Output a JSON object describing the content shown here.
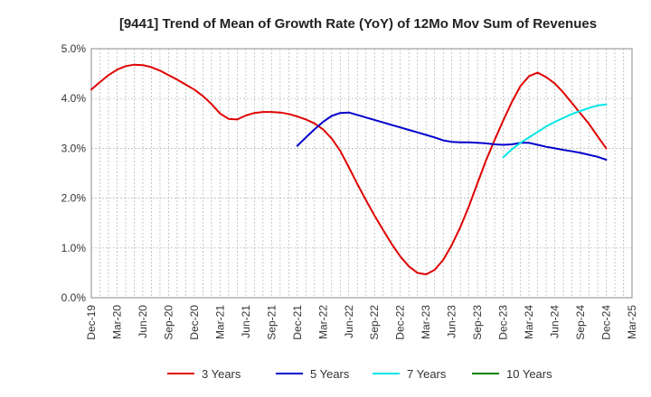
{
  "chart_data": {
    "type": "line",
    "title": "[9441]  Trend of Mean of Growth Rate (YoY) of 12Mo Mov Sum of Revenues",
    "xlabel": "",
    "ylabel": "",
    "ylim": [
      0,
      5
    ],
    "y_ticks": [
      "0.0%",
      "1.0%",
      "2.0%",
      "3.0%",
      "4.0%",
      "5.0%"
    ],
    "x_ticks": [
      "Dec-19",
      "Mar-20",
      "Jun-20",
      "Sep-20",
      "Dec-20",
      "Mar-21",
      "Jun-21",
      "Sep-21",
      "Dec-21",
      "Mar-22",
      "Jun-22",
      "Sep-22",
      "Dec-22",
      "Mar-23",
      "Jun-23",
      "Sep-23",
      "Dec-23",
      "Mar-24",
      "Jun-24",
      "Sep-24",
      "Dec-24",
      "Mar-25"
    ],
    "x_range_months": [
      0,
      63
    ],
    "grid": true,
    "legend_position": "bottom",
    "series": [
      {
        "name": "3 Years",
        "color": "#e00000",
        "x": [
          0,
          1,
          2,
          3,
          4,
          5,
          6,
          7,
          8,
          9,
          10,
          11,
          12,
          13,
          14,
          15,
          16,
          17,
          18,
          19,
          20,
          21,
          22,
          23,
          24,
          25,
          26,
          27,
          28,
          29,
          30,
          31,
          32,
          33,
          34,
          35,
          36,
          37,
          38,
          39,
          40,
          41,
          42,
          43,
          44,
          45,
          46,
          47,
          48,
          49,
          50,
          51,
          52,
          53,
          54,
          55,
          56,
          57,
          58,
          59,
          60
        ],
        "values": [
          4.18,
          4.33,
          4.47,
          4.58,
          4.65,
          4.68,
          4.67,
          4.63,
          4.56,
          4.47,
          4.38,
          4.28,
          4.18,
          4.05,
          3.89,
          3.7,
          3.59,
          3.58,
          3.66,
          3.71,
          3.73,
          3.73,
          3.72,
          3.69,
          3.64,
          3.58,
          3.5,
          3.38,
          3.2,
          2.95,
          2.62,
          2.28,
          1.96,
          1.65,
          1.36,
          1.08,
          0.83,
          0.63,
          0.5,
          0.47,
          0.56,
          0.76,
          1.06,
          1.42,
          1.84,
          2.3,
          2.76,
          3.17,
          3.56,
          3.93,
          4.25,
          4.45,
          4.52,
          4.43,
          4.3,
          4.12,
          3.91,
          3.7,
          3.49,
          3.24,
          3.0
        ]
      },
      {
        "name": "5 Years",
        "color": "#0000cc",
        "x": [
          24,
          25,
          26,
          27,
          28,
          29,
          30,
          31,
          32,
          33,
          34,
          35,
          36,
          37,
          38,
          39,
          40,
          41,
          42,
          43,
          44,
          45,
          46,
          47,
          48,
          49,
          50,
          51,
          52,
          53,
          54,
          55,
          56,
          57,
          58,
          59,
          60
        ],
        "values": [
          3.05,
          3.22,
          3.38,
          3.53,
          3.65,
          3.71,
          3.72,
          3.67,
          3.62,
          3.57,
          3.52,
          3.47,
          3.42,
          3.37,
          3.32,
          3.27,
          3.22,
          3.16,
          3.13,
          3.12,
          3.12,
          3.11,
          3.1,
          3.08,
          3.07,
          3.08,
          3.11,
          3.11,
          3.07,
          3.03,
          3.0,
          2.97,
          2.94,
          2.91,
          2.87,
          2.83,
          2.77
        ]
      },
      {
        "name": "7 Years",
        "color": "#00e5e5",
        "x": [
          48,
          49,
          50,
          51,
          52,
          53,
          54,
          55,
          56,
          57,
          58,
          59,
          60
        ],
        "values": [
          2.82,
          2.98,
          3.11,
          3.22,
          3.33,
          3.44,
          3.53,
          3.61,
          3.69,
          3.75,
          3.81,
          3.86,
          3.88
        ]
      },
      {
        "name": "10 Years",
        "color": "#008000",
        "x": [],
        "values": []
      }
    ]
  }
}
